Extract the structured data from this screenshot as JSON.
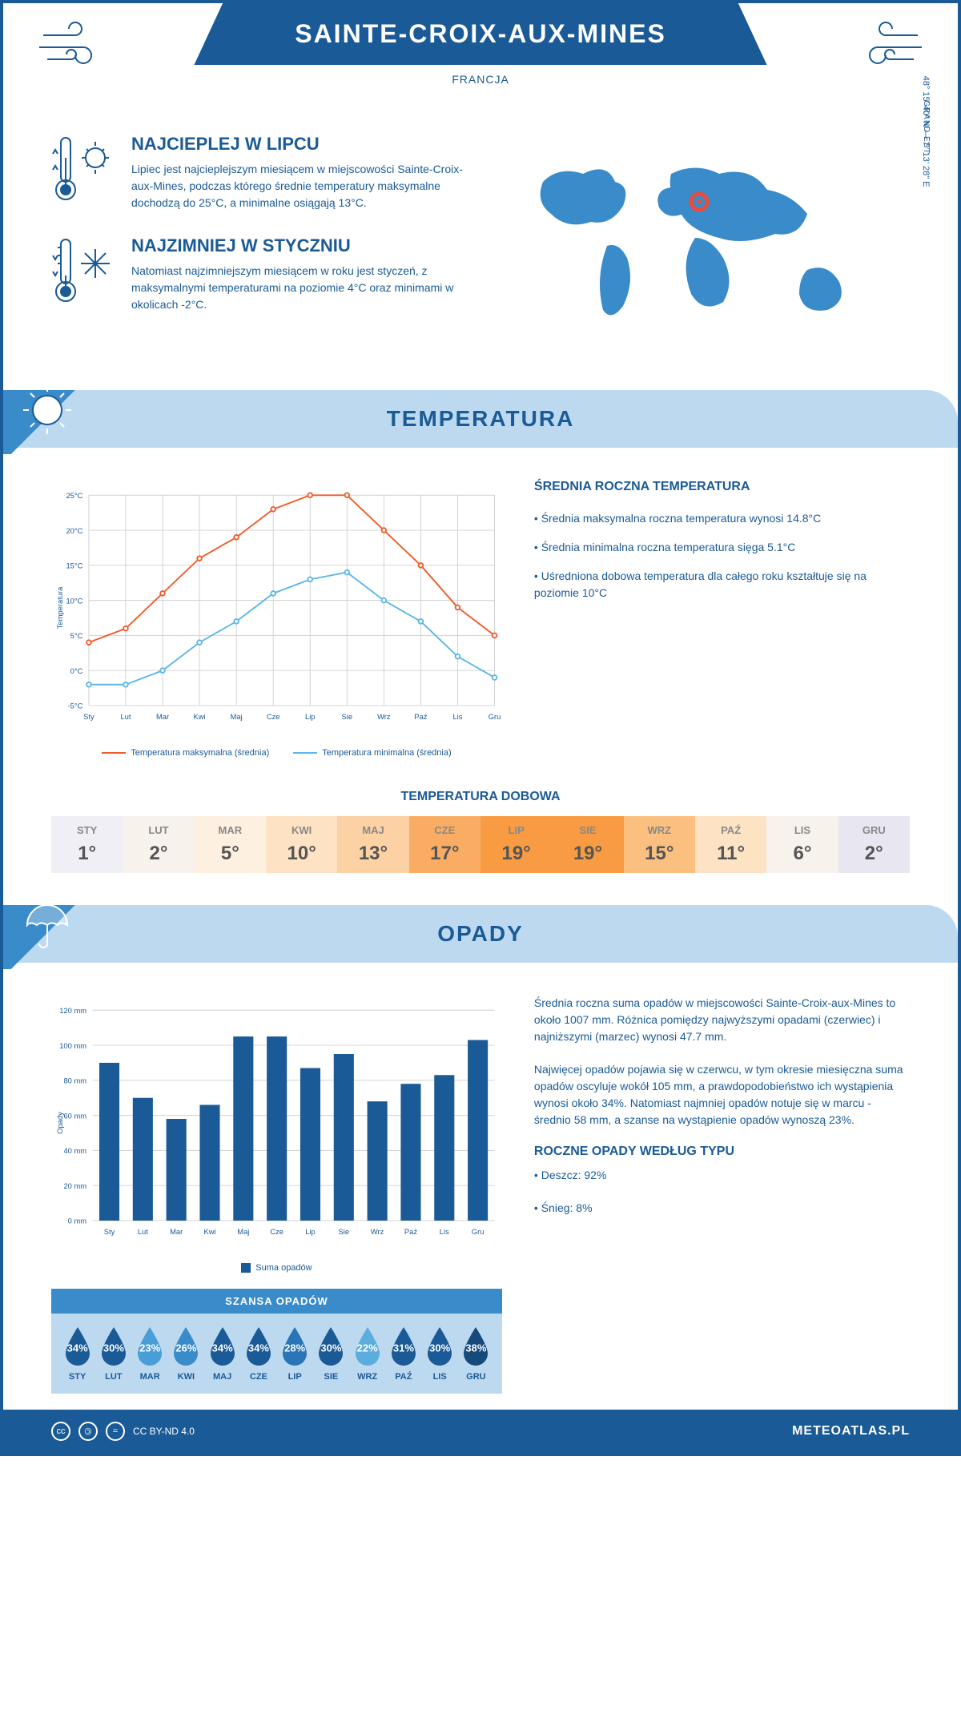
{
  "header": {
    "title": "SAINTE-CROIX-AUX-MINES",
    "country": "FRANCJA"
  },
  "intro": {
    "warmest": {
      "title": "NAJCIEPLEJ W LIPCU",
      "text": "Lipiec jest najcieplejszym miesiącem w miejscowości Sainte-Croix-aux-Mines, podczas którego średnie temperatury maksymalne dochodzą do 25°C, a minimalne osiągają 13°C."
    },
    "coldest": {
      "title": "NAJZIMNIEJ W STYCZNIU",
      "text": "Natomiast najzimniejszym miesiącem w roku jest styczeń, z maksymalnymi temperaturami na poziomie 4°C oraz minimami w okolicach -2°C."
    },
    "coords": "48° 15' 40\" N — 7° 13' 28\" E",
    "region": "GRAND EST"
  },
  "temperature": {
    "section_title": "TEMPERATURA",
    "chart": {
      "type": "line",
      "months": [
        "Sty",
        "Lut",
        "Mar",
        "Kwi",
        "Maj",
        "Cze",
        "Lip",
        "Sie",
        "Wrz",
        "Paź",
        "Lis",
        "Gru"
      ],
      "max_series": [
        4,
        6,
        11,
        16,
        19,
        23,
        25,
        25,
        20,
        15,
        9,
        5
      ],
      "min_series": [
        -2,
        -2,
        0,
        4,
        7,
        11,
        13,
        14,
        10,
        7,
        2,
        -1
      ],
      "max_color": "#f15a29",
      "min_color": "#5bb5e8",
      "ylabel": "Temperatura",
      "ylim": [
        -5,
        25
      ],
      "ytick_step": 5,
      "grid_color": "#d0d0d0",
      "legend_max": "Temperatura maksymalna (średnia)",
      "legend_min": "Temperatura minimalna (średnia)"
    },
    "annual": {
      "title": "ŚREDNIA ROCZNA TEMPERATURA",
      "point1": "Średnia maksymalna roczna temperatura wynosi 14.8°C",
      "point2": "Średnia minimalna roczna temperatura sięga 5.1°C",
      "point3": "Uśredniona dobowa temperatura dla całego roku kształtuje się na poziomie 10°C"
    },
    "daily": {
      "title": "TEMPERATURA DOBOWA",
      "months": [
        "STY",
        "LUT",
        "MAR",
        "KWI",
        "MAJ",
        "CZE",
        "LIP",
        "SIE",
        "WRZ",
        "PAŹ",
        "LIS",
        "GRU"
      ],
      "values": [
        "1°",
        "2°",
        "5°",
        "10°",
        "13°",
        "17°",
        "19°",
        "19°",
        "15°",
        "11°",
        "6°",
        "2°"
      ],
      "colors": [
        "#f0eff5",
        "#f7f2eb",
        "#fdf0e1",
        "#fde2c4",
        "#fcd1a3",
        "#faad62",
        "#f89b42",
        "#f89b42",
        "#fbbf80",
        "#fde2c4",
        "#f7f2eb",
        "#e8e6f0"
      ]
    }
  },
  "precipitation": {
    "section_title": "OPADY",
    "chart": {
      "type": "bar",
      "months": [
        "Sty",
        "Lut",
        "Mar",
        "Kwi",
        "Maj",
        "Cze",
        "Lip",
        "Sie",
        "Wrz",
        "Paź",
        "Lis",
        "Gru"
      ],
      "values": [
        90,
        70,
        58,
        66,
        105,
        105,
        87,
        95,
        68,
        78,
        83,
        103
      ],
      "bar_color": "#1a5a96",
      "ylabel": "Opady",
      "ylim": [
        0,
        120
      ],
      "ytick_step": 20,
      "grid_color": "#d0d0d0",
      "legend": "Suma opadów"
    },
    "text1": "Średnia roczna suma opadów w miejscowości Sainte-Croix-aux-Mines to około 1007 mm. Różnica pomiędzy najwyższymi opadami (czerwiec) i najniższymi (marzec) wynosi 47.7 mm.",
    "text2": "Najwięcej opadów pojawia się w czerwcu, w tym okresie miesięczna suma opadów oscyluje wokół 105 mm, a prawdopodobieństwo ich wystąpienia wynosi około 34%. Natomiast najmniej opadów notuje się w marcu - średnio 58 mm, a szanse na wystąpienie opadów wynoszą 23%.",
    "chance": {
      "title": "SZANSA OPADÓW",
      "months": [
        "STY",
        "LUT",
        "MAR",
        "KWI",
        "MAJ",
        "CZE",
        "LIP",
        "SIE",
        "WRZ",
        "PAŹ",
        "LIS",
        "GRU"
      ],
      "percents": [
        "34%",
        "30%",
        "23%",
        "26%",
        "34%",
        "34%",
        "28%",
        "30%",
        "22%",
        "31%",
        "30%",
        "38%"
      ],
      "drop_colors": [
        "#1a5a96",
        "#1a5a96",
        "#4a9ed8",
        "#3a8bc9",
        "#1a5a96",
        "#1a5a96",
        "#2a75b8",
        "#1a5a96",
        "#5badde",
        "#1a5a96",
        "#1a5a96",
        "#154a7a"
      ]
    },
    "by_type": {
      "title": "ROCZNE OPADY WEDŁUG TYPU",
      "rain": "Deszcz: 92%",
      "snow": "Śnieg: 8%"
    }
  },
  "footer": {
    "license": "CC BY-ND 4.0",
    "site": "METEOATLAS.PL"
  }
}
